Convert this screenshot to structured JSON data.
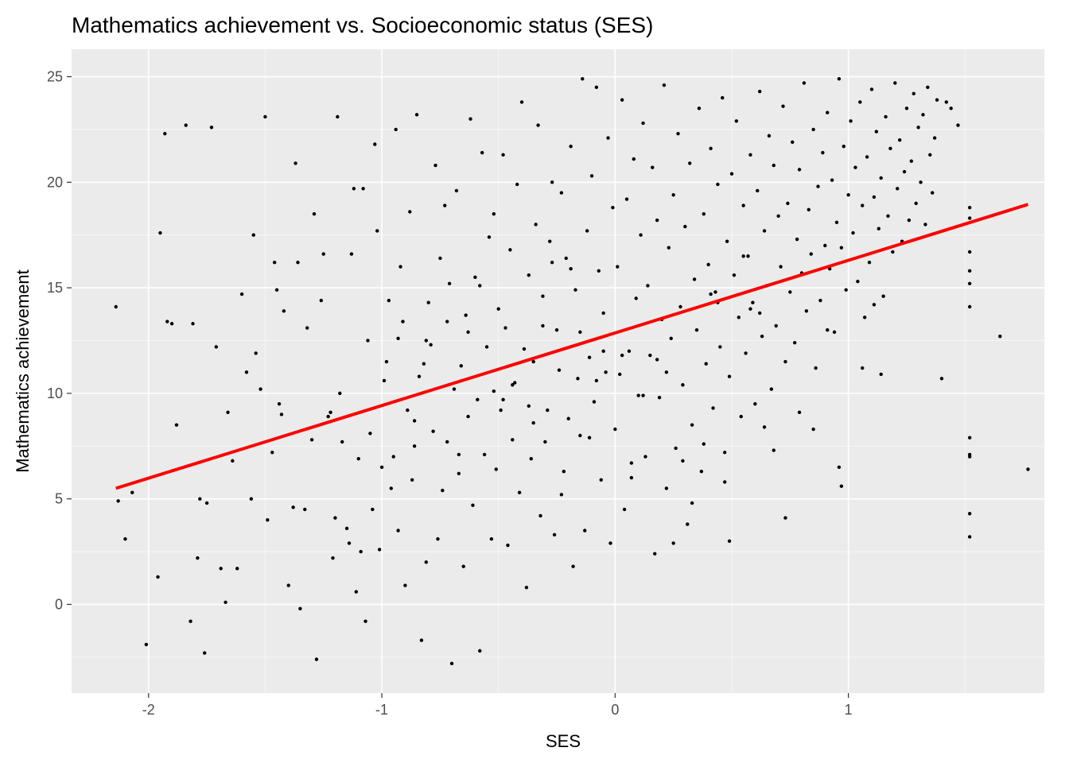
{
  "chart_data": {
    "type": "scatter",
    "title": "Mathematics achievement vs. Socioeconomic status (SES)",
    "xlabel": "SES",
    "ylabel": "Mathematics achievement",
    "xlim": [
      -2.33,
      1.84
    ],
    "ylim": [
      -4.2,
      26.3
    ],
    "x_ticks": [
      -2,
      -1,
      0,
      1
    ],
    "x_tick_labels": [
      "-2",
      "-1",
      "0",
      "1"
    ],
    "y_ticks": [
      0,
      5,
      10,
      15,
      20,
      25
    ],
    "y_tick_labels": [
      "0",
      "5",
      "10",
      "15",
      "20",
      "25"
    ],
    "x_minor_ticks": [
      -1.5,
      -0.5,
      0.5,
      1.5
    ],
    "y_minor_ticks": [
      -2.5,
      2.5,
      7.5,
      12.5,
      17.5,
      22.5
    ],
    "grid": true,
    "legend": "none",
    "colors": {
      "panel_background": "#ebebeb",
      "grid_line": "#ffffff",
      "point": "#000000",
      "fit_line": "#ff0000",
      "tick_label": "#4d4d4d",
      "text": "#000000"
    },
    "fit_line": {
      "name": "",
      "type": "linear",
      "x": [
        -2.14,
        1.77
      ],
      "y": [
        5.5,
        18.95
      ]
    },
    "points": {
      "x": [
        -2.14,
        -2.13,
        -2.07,
        -2.1,
        -2.01,
        -1.96,
        -1.95,
        -1.93,
        -1.92,
        -1.9,
        -1.88,
        -1.84,
        -1.82,
        -1.81,
        -1.79,
        -1.78,
        -1.76,
        -1.75,
        -1.73,
        -1.71,
        -1.69,
        -1.67,
        -1.66,
        -1.64,
        -1.62,
        -1.6,
        -1.58,
        -1.56,
        -1.55,
        -1.54,
        -1.52,
        -1.5,
        -1.49,
        -1.47,
        -1.46,
        -1.45,
        -1.44,
        -1.43,
        -1.42,
        -1.4,
        -1.38,
        -1.37,
        -1.36,
        -1.35,
        -1.33,
        -1.32,
        -1.3,
        -1.29,
        -1.28,
        -1.26,
        -1.25,
        -1.23,
        -1.22,
        -1.21,
        -1.2,
        -1.19,
        -1.18,
        -1.17,
        -1.15,
        -1.14,
        -1.13,
        -1.12,
        -1.11,
        -1.1,
        -1.09,
        -1.08,
        -1.07,
        -1.06,
        -1.05,
        -1.04,
        -1.03,
        -1.02,
        -1.01,
        -1.0,
        -0.99,
        -0.98,
        -0.97,
        -0.96,
        -0.95,
        -0.94,
        -0.93,
        -0.92,
        -0.91,
        -0.9,
        -0.89,
        -0.88,
        -0.87,
        -0.86,
        -0.85,
        -0.84,
        -0.83,
        -0.82,
        -0.81,
        -0.8,
        -0.79,
        -0.78,
        -0.77,
        -0.76,
        -0.75,
        -0.74,
        -0.73,
        -0.72,
        -0.71,
        -0.7,
        -0.69,
        -0.68,
        -0.67,
        -0.66,
        -0.65,
        -0.64,
        -0.63,
        -0.62,
        -0.61,
        -0.6,
        -0.59,
        -0.58,
        -0.57,
        -0.56,
        -0.55,
        -0.54,
        -0.53,
        -0.52,
        -0.51,
        -0.5,
        -0.49,
        -0.48,
        -0.47,
        -0.46,
        -0.45,
        -0.44,
        -0.43,
        -0.42,
        -0.41,
        -0.4,
        -0.39,
        -0.38,
        -0.37,
        -0.36,
        -0.35,
        -0.34,
        -0.33,
        -0.32,
        -0.31,
        -0.3,
        -0.29,
        -0.28,
        -0.27,
        -0.26,
        -0.25,
        -0.24,
        -0.23,
        -0.22,
        -0.21,
        -0.2,
        -0.19,
        -0.18,
        -0.17,
        -0.16,
        -0.15,
        -0.14,
        -0.13,
        -0.12,
        -0.11,
        -0.1,
        -0.09,
        -0.08,
        -0.07,
        -0.06,
        -0.05,
        -0.04,
        -0.03,
        -0.02,
        -0.01,
        0.0,
        0.01,
        0.02,
        0.03,
        0.04,
        0.05,
        0.06,
        0.07,
        0.08,
        0.09,
        0.1,
        0.11,
        0.12,
        0.13,
        0.14,
        0.15,
        0.16,
        0.17,
        0.18,
        0.19,
        0.2,
        0.21,
        0.22,
        0.23,
        0.24,
        0.25,
        0.26,
        0.27,
        0.28,
        0.29,
        0.3,
        0.31,
        0.32,
        0.33,
        0.34,
        0.35,
        0.36,
        0.37,
        0.38,
        0.39,
        0.4,
        0.41,
        0.42,
        0.43,
        0.44,
        0.45,
        0.46,
        0.47,
        0.48,
        0.49,
        0.5,
        0.51,
        0.52,
        0.53,
        0.54,
        0.55,
        0.56,
        0.57,
        0.58,
        0.59,
        0.6,
        0.61,
        0.62,
        0.63,
        0.64,
        0.65,
        0.66,
        0.67,
        0.68,
        0.69,
        0.7,
        0.71,
        0.72,
        0.73,
        0.74,
        0.75,
        0.76,
        0.77,
        0.78,
        0.79,
        0.8,
        0.81,
        0.82,
        0.83,
        0.84,
        0.85,
        0.86,
        0.87,
        0.88,
        0.89,
        0.9,
        0.91,
        0.92,
        0.93,
        0.94,
        0.95,
        0.96,
        0.97,
        0.98,
        0.99,
        1.0,
        1.01,
        1.02,
        1.03,
        1.04,
        1.05,
        1.06,
        1.07,
        1.08,
        1.09,
        1.1,
        1.11,
        1.12,
        1.13,
        1.14,
        1.15,
        1.16,
        1.17,
        1.18,
        1.19,
        1.2,
        1.21,
        1.22,
        1.23,
        1.24,
        1.25,
        1.26,
        1.27,
        1.28,
        1.29,
        1.3,
        1.31,
        1.32,
        1.33,
        1.34,
        1.35,
        1.36,
        1.37,
        1.38,
        1.4,
        1.42,
        1.44,
        1.47,
        1.52,
        1.52,
        1.52,
        1.52,
        1.52,
        1.52,
        1.52,
        1.52,
        1.52,
        1.52,
        1.52,
        1.65,
        1.77,
        -0.52,
        -0.35,
        0.25,
        0.62,
        0.97,
        -0.11,
        0.44,
        0.68,
        0.12,
        -0.27,
        0.33,
        0.85,
        -0.63,
        -0.44,
        0.07,
        0.58,
        -0.86,
        -0.19,
        0.49,
        1.06,
        -0.72,
        -0.05,
        0.38,
        0.79,
        -0.58,
        -0.23,
        0.18,
        0.91,
        -0.37,
        0.29,
        1.14,
        -0.81,
        -0.15,
        0.55,
        0.73,
        -0.48,
        0.03,
        0.41,
        0.96,
        -0.67,
        -0.31,
        0.22,
        0.64,
        -0.93,
        -0.08,
        0.47,
        1.11
      ],
      "y": [
        14.1,
        4.9,
        5.3,
        3.1,
        -1.9,
        1.3,
        17.6,
        22.3,
        13.4,
        13.3,
        8.5,
        22.7,
        -0.8,
        13.3,
        2.2,
        5.0,
        -2.3,
        4.8,
        22.6,
        12.2,
        1.7,
        0.1,
        9.1,
        6.8,
        1.7,
        14.7,
        11.0,
        5.0,
        17.5,
        11.9,
        10.2,
        23.1,
        4.0,
        7.2,
        16.2,
        14.9,
        9.5,
        9.0,
        13.9,
        0.9,
        4.6,
        20.9,
        16.2,
        -0.2,
        4.5,
        13.1,
        7.8,
        18.5,
        -2.6,
        14.4,
        16.6,
        8.9,
        9.1,
        2.2,
        4.1,
        23.1,
        10.0,
        7.7,
        3.6,
        2.9,
        16.6,
        19.7,
        0.6,
        6.9,
        2.5,
        19.7,
        -0.8,
        12.5,
        8.1,
        4.5,
        21.8,
        17.7,
        2.6,
        6.5,
        10.6,
        11.5,
        14.4,
        5.5,
        7.0,
        22.5,
        3.5,
        16.0,
        13.4,
        0.9,
        9.2,
        18.6,
        5.9,
        7.5,
        23.2,
        10.8,
        -1.7,
        11.4,
        2.0,
        14.3,
        12.3,
        8.2,
        20.8,
        3.1,
        16.4,
        5.4,
        18.9,
        7.7,
        15.2,
        -2.8,
        10.2,
        19.6,
        6.2,
        11.3,
        1.8,
        13.7,
        8.9,
        23.0,
        4.7,
        15.5,
        9.7,
        -2.2,
        21.4,
        7.1,
        12.2,
        17.4,
        3.1,
        18.5,
        6.4,
        14.0,
        9.2,
        21.3,
        13.1,
        2.8,
        16.8,
        7.8,
        10.5,
        19.9,
        5.3,
        23.8,
        12.1,
        0.8,
        15.6,
        6.9,
        11.5,
        18.0,
        22.7,
        4.2,
        14.6,
        7.7,
        9.2,
        17.2,
        20.0,
        3.3,
        13.0,
        11.1,
        19.5,
        6.3,
        16.4,
        8.8,
        21.7,
        1.8,
        14.9,
        10.7,
        12.9,
        24.9,
        3.5,
        17.7,
        7.9,
        20.3,
        9.6,
        24.5,
        15.8,
        5.9,
        13.8,
        11.0,
        22.1,
        2.9,
        18.8,
        8.3,
        16.0,
        10.9,
        23.9,
        4.5,
        19.2,
        12.0,
        6.7,
        21.1,
        14.5,
        9.9,
        17.5,
        22.8,
        7.0,
        15.1,
        11.8,
        20.7,
        2.4,
        18.2,
        9.8,
        13.5,
        24.6,
        5.5,
        16.9,
        12.6,
        19.4,
        7.4,
        22.3,
        14.1,
        10.4,
        17.9,
        3.8,
        20.9,
        8.5,
        15.4,
        13.0,
        23.5,
        6.3,
        18.5,
        11.4,
        16.1,
        21.6,
        9.3,
        14.8,
        19.9,
        12.2,
        24.0,
        7.2,
        17.2,
        10.8,
        20.4,
        15.6,
        22.9,
        13.6,
        8.9,
        18.9,
        11.9,
        16.5,
        21.3,
        14.3,
        9.5,
        19.6,
        24.3,
        12.7,
        17.7,
        15.1,
        22.2,
        10.2,
        20.8,
        13.2,
        18.4,
        16.0,
        23.6,
        11.5,
        19.0,
        14.8,
        21.9,
        12.4,
        17.3,
        20.6,
        15.7,
        24.7,
        13.9,
        18.7,
        16.6,
        22.5,
        11.2,
        19.8,
        14.4,
        21.4,
        17.0,
        23.3,
        15.9,
        20.1,
        12.9,
        18.1,
        24.9,
        16.9,
        21.7,
        14.9,
        19.4,
        22.9,
        17.6,
        20.7,
        15.3,
        23.8,
        18.9,
        13.6,
        21.2,
        16.2,
        24.4,
        19.3,
        22.4,
        17.8,
        20.2,
        14.6,
        23.1,
        18.4,
        21.6,
        16.7,
        24.7,
        19.7,
        22.0,
        17.2,
        20.5,
        23.5,
        18.2,
        21.0,
        24.2,
        19.0,
        22.6,
        20.0,
        23.2,
        18.0,
        24.5,
        21.3,
        19.5,
        22.1,
        23.9,
        10.7,
        23.8,
        23.5,
        22.7,
        18.8,
        18.3,
        15.8,
        15.2,
        14.1,
        7.9,
        7.1,
        7.0,
        3.2,
        16.7,
        4.3,
        12.7,
        6.4,
        10.1,
        8.6,
        2.9,
        13.8,
        5.6,
        11.7,
        14.3,
        7.3,
        9.9,
        16.2,
        4.8,
        8.3,
        12.9,
        10.4,
        6.0,
        14.0,
        8.7,
        15.9,
        3.0,
        11.2,
        13.4,
        12.0,
        7.6,
        9.1,
        15.1,
        5.2,
        11.6,
        13.0,
        9.4,
        6.8,
        10.9,
        12.5,
        8.0,
        16.5,
        4.1,
        9.7,
        11.8,
        14.7,
        6.5,
        7.1,
        13.2,
        11.0,
        8.4,
        12.6,
        10.6,
        5.8,
        14.2
      ],
      "x_note": "",
      "y_note": ""
    }
  }
}
